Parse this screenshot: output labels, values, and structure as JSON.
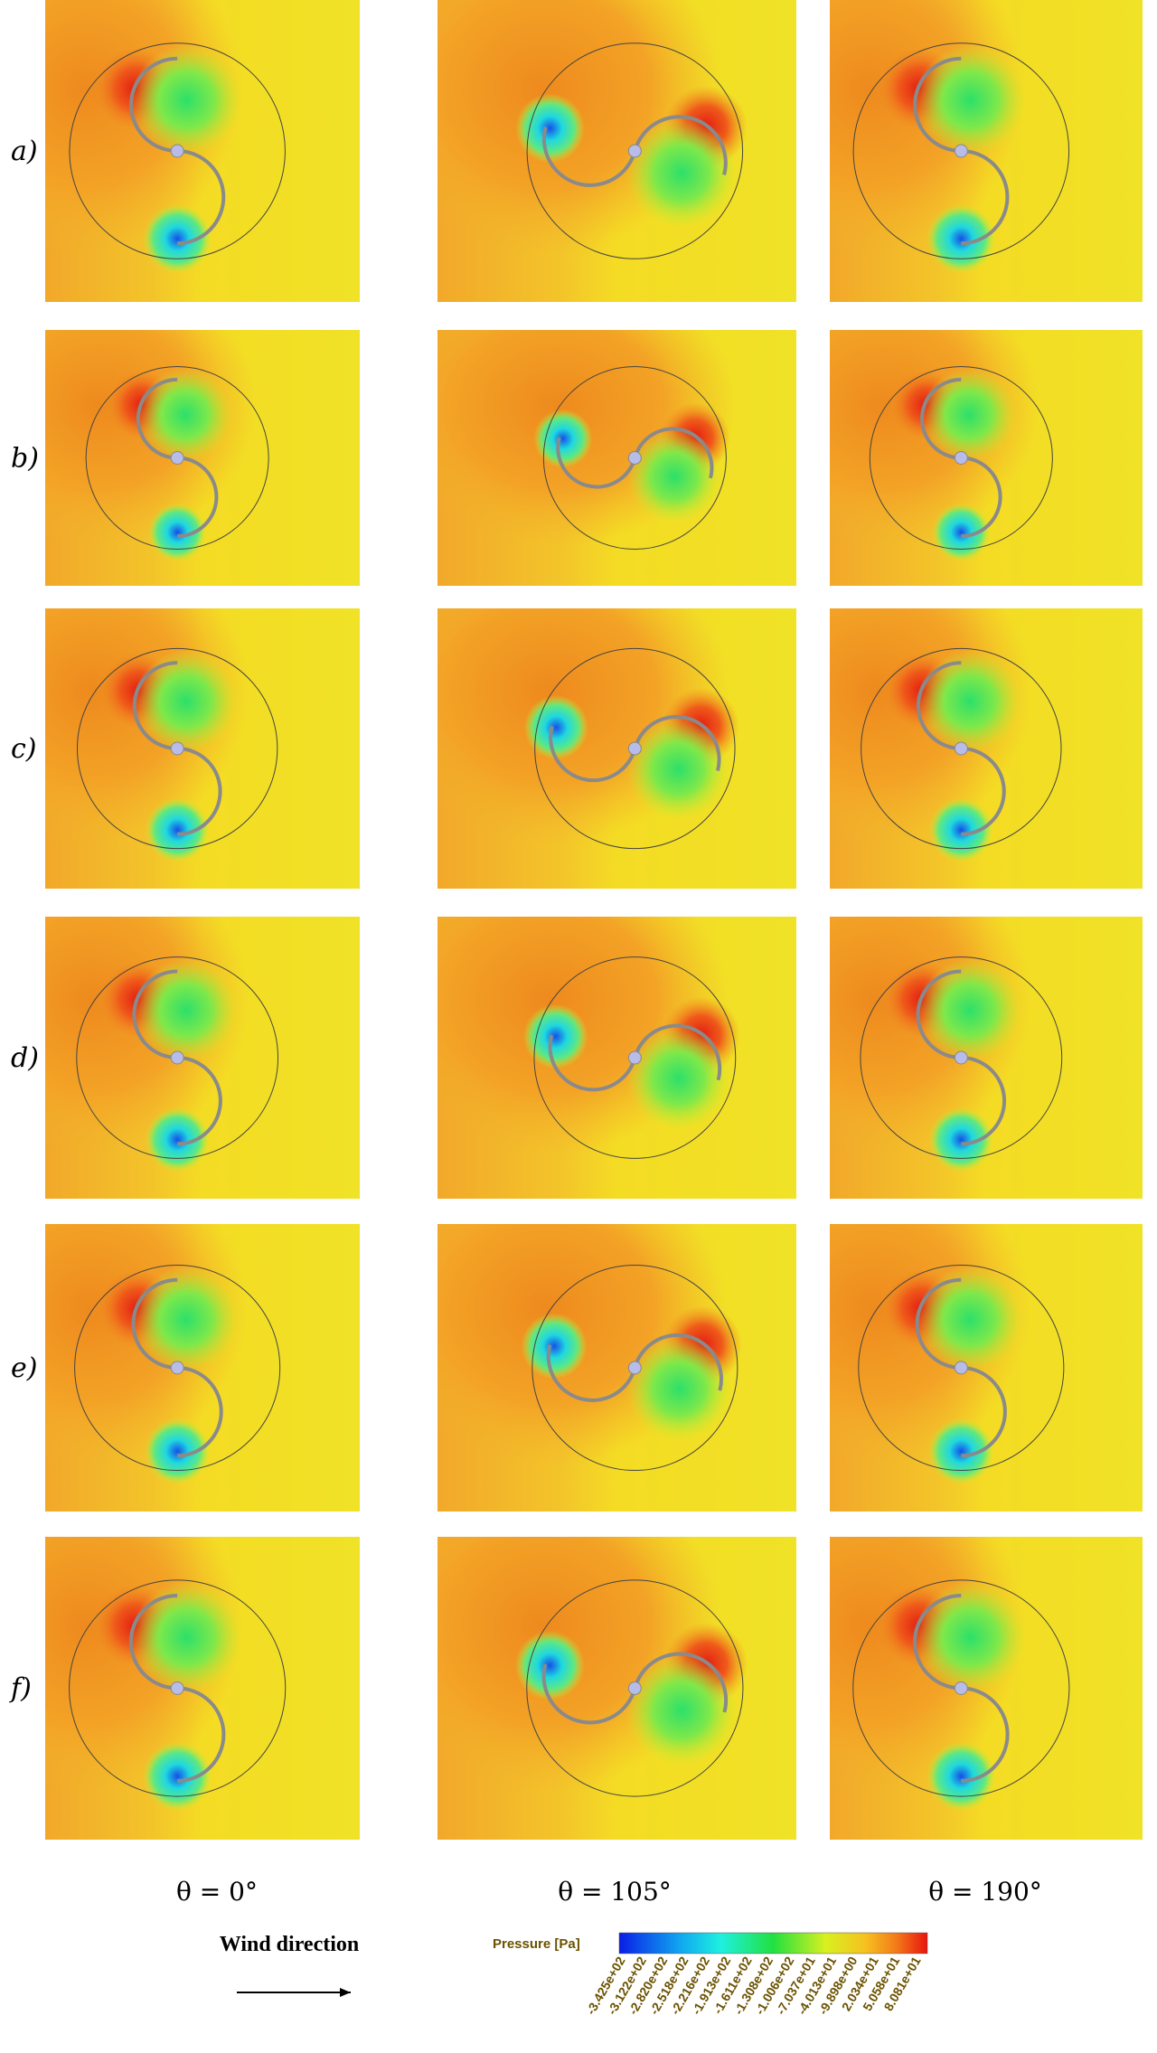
{
  "rows": [
    "a)",
    "b)",
    "c)",
    "d)",
    "e)",
    "f)"
  ],
  "columns": [
    "θ = 0°",
    "θ = 105°",
    "θ = 190°"
  ],
  "wind_direction": "Wind direction",
  "colorbar": {
    "title": "Pressure [Pa]",
    "ticks": [
      "-3.425e+02",
      "-3.122e+02",
      "-2.820e+02",
      "-2.518e+02",
      "-2.216e+02",
      "-1.913e+02",
      "-1.611e+02",
      "-1.308e+02",
      "-1.006e+02",
      "-7.037e+01",
      "-4.013e+01",
      "-9.898e+00",
      "2.034e+01",
      "5.058e+01",
      "8.081e+01"
    ]
  }
}
